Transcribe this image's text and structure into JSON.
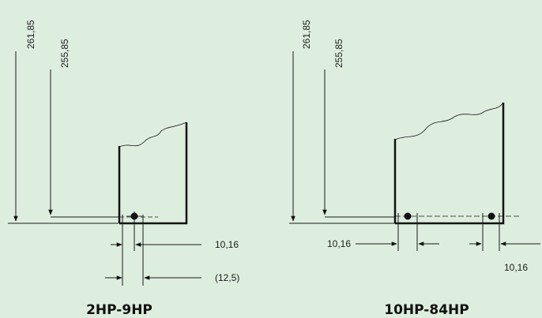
{
  "left": {
    "caption": "2HP-9HP",
    "height_outer": "261,85",
    "height_inner": "255,85",
    "offset": "10,16",
    "offset_alt": "(12,5)"
  },
  "right": {
    "caption": "10HP-84HP",
    "height_outer": "261,85",
    "height_inner": "255,85",
    "offset_left": "10,16",
    "offset_right": "10,16"
  }
}
